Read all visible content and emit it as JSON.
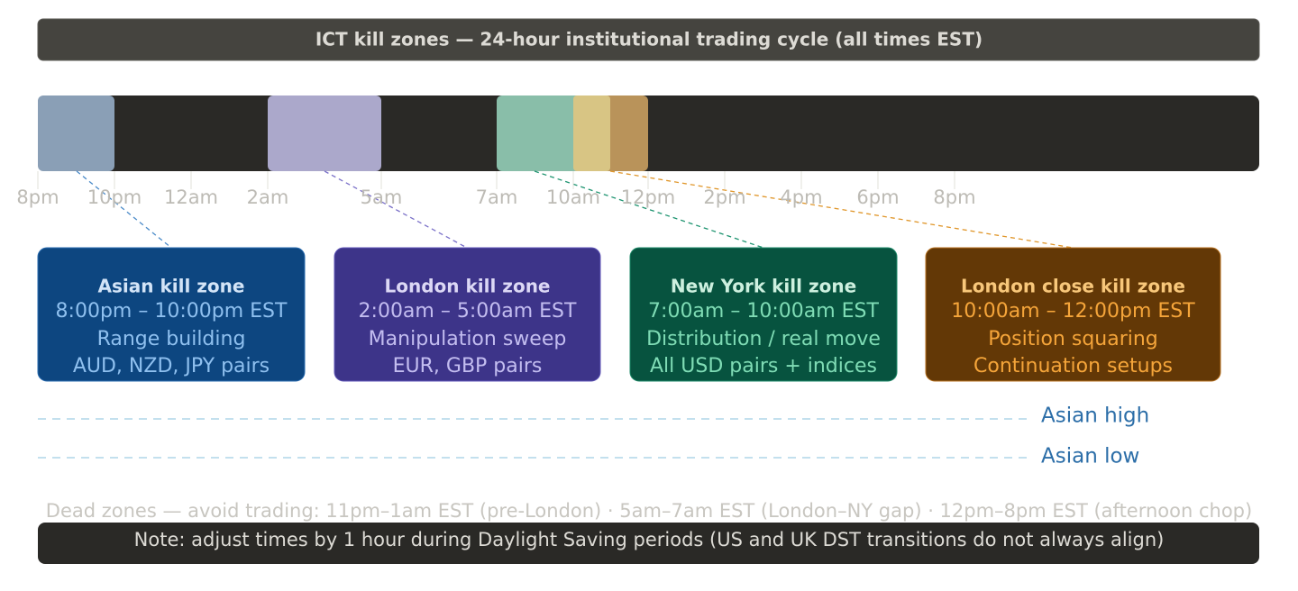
{
  "header": {
    "title": "ICT kill zones — 24-hour institutional trading cycle (all times EST)"
  },
  "timeline": {
    "ticks": [
      "8pm",
      "10pm",
      "12am",
      "2am",
      "5am",
      "7am",
      "10am",
      "12pm",
      "2pm",
      "4pm",
      "6pm",
      "8pm"
    ]
  },
  "zones": [
    {
      "title": "Asian kill zone",
      "time": "8:00pm – 10:00pm EST",
      "lines": [
        "Range building",
        "AUD, NZD, JPY pairs"
      ]
    },
    {
      "title": "London kill zone",
      "time": "2:00am – 5:00am EST",
      "lines": [
        "Manipulation sweep",
        "EUR, GBP pairs"
      ]
    },
    {
      "title": "New York kill zone",
      "time": "7:00am – 10:00am EST",
      "lines": [
        "Distribution / real move",
        "All USD pairs + indices"
      ]
    },
    {
      "title": "London close kill zone",
      "time": "10:00am – 12:00pm EST",
      "lines": [
        "Position squaring",
        "Continuation setups"
      ]
    }
  ],
  "levels": [
    "Asian high",
    "Asian low"
  ],
  "footer": {
    "dead_zones": "Dead zones — avoid trading: 11pm–1am EST (pre-London) · 5am–7am EST (London–NY gap) · 12pm–8pm EST (afternoon chop)",
    "note": "Note: adjust times by 1 hour during Daylight Saving periods (US and UK DST transitions do not always align)"
  }
}
